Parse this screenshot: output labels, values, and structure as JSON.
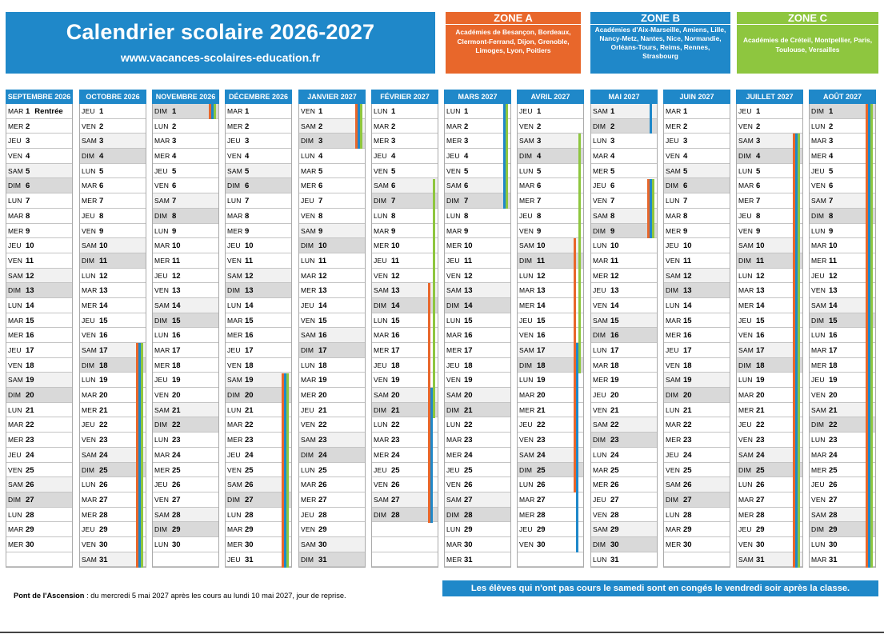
{
  "title": {
    "main": "Calendrier scolaire 2026-2027",
    "website": "www.vacances-scolaires-education.fr"
  },
  "zones": {
    "a": {
      "name": "ZONE A",
      "academies": "Académies de Besançon, Bordeaux, Clermont-Ferrand, Dijon, Grenoble, Limoges, Lyon, Poitiers",
      "color": "#e8672b"
    },
    "b": {
      "name": "ZONE B",
      "academies": "Académies d'Aix-Marseille, Amiens, Lille, Nancy-Metz, Nantes, Nice, Normandie, Orléans-Tours, Reims, Rennes, Strasbourg",
      "color": "#1f88c9"
    },
    "c": {
      "name": "ZONE C",
      "academies": "Académies de Créteil, Montpellier, Paris, Toulouse, Versailles",
      "color": "#8ec63f"
    }
  },
  "months": [
    {
      "name": "SEPTEMBRE 2026",
      "first_day": 2,
      "days": 30,
      "notes": {
        "1": "Rentrée"
      }
    },
    {
      "name": "OCTOBRE 2026",
      "first_day": 4,
      "days": 31
    },
    {
      "name": "NOVEMBRE 2026",
      "first_day": 0,
      "days": 30
    },
    {
      "name": "DÉCEMBRE 2026",
      "first_day": 2,
      "days": 31
    },
    {
      "name": "JANVIER 2027",
      "first_day": 5,
      "days": 31
    },
    {
      "name": "FÉVRIER 2027",
      "first_day": 1,
      "days": 28
    },
    {
      "name": "MARS 2027",
      "first_day": 1,
      "days": 31
    },
    {
      "name": "AVRIL 2027",
      "first_day": 4,
      "days": 30
    },
    {
      "name": "MAI 2027",
      "first_day": 6,
      "days": 31
    },
    {
      "name": "JUIN 2027",
      "first_day": 2,
      "days": 30
    },
    {
      "name": "JUILLET 2027",
      "first_day": 4,
      "days": 31
    },
    {
      "name": "AOÛT 2027",
      "first_day": 0,
      "days": 31
    }
  ],
  "day_abbrev": [
    "DIM",
    "LUN",
    "MAR",
    "MER",
    "JEU",
    "VEN",
    "SAM"
  ],
  "holidays": [
    {
      "zone": "a",
      "month": 1,
      "from": 17,
      "to": 31
    },
    {
      "zone": "b",
      "month": 1,
      "from": 17,
      "to": 31
    },
    {
      "zone": "c",
      "month": 1,
      "from": 17,
      "to": 31
    },
    {
      "zone": "a",
      "month": 2,
      "from": 1,
      "to": 1
    },
    {
      "zone": "b",
      "month": 2,
      "from": 1,
      "to": 1
    },
    {
      "zone": "c",
      "month": 2,
      "from": 1,
      "to": 1
    },
    {
      "zone": "a",
      "month": 3,
      "from": 19,
      "to": 31
    },
    {
      "zone": "b",
      "month": 3,
      "from": 19,
      "to": 31
    },
    {
      "zone": "c",
      "month": 3,
      "from": 19,
      "to": 31
    },
    {
      "zone": "a",
      "month": 4,
      "from": 1,
      "to": 3
    },
    {
      "zone": "b",
      "month": 4,
      "from": 1,
      "to": 3
    },
    {
      "zone": "c",
      "month": 4,
      "from": 1,
      "to": 3
    },
    {
      "zone": "c",
      "month": 5,
      "from": 6,
      "to": 21
    },
    {
      "zone": "c",
      "month": 6,
      "from": 1,
      "to": 7
    },
    {
      "zone": "a",
      "month": 5,
      "from": 13,
      "to": 28
    },
    {
      "zone": "b",
      "month": 5,
      "from": 20,
      "to": 28
    },
    {
      "zone": "b",
      "month": 6,
      "from": 1,
      "to": 7
    },
    {
      "zone": "a",
      "month": 7,
      "from": 10,
      "to": 26
    },
    {
      "zone": "b",
      "month": 7,
      "from": 17,
      "to": 30
    },
    {
      "zone": "c",
      "month": 7,
      "from": 3,
      "to": 18
    },
    {
      "zone": "b",
      "month": 8,
      "from": 1,
      "to": 2
    },
    {
      "zone": "a",
      "month": 8,
      "from": 6,
      "to": 9
    },
    {
      "zone": "b",
      "month": 8,
      "from": 6,
      "to": 9
    },
    {
      "zone": "c",
      "month": 8,
      "from": 6,
      "to": 9
    },
    {
      "zone": "a",
      "month": 10,
      "from": 3,
      "to": 31
    },
    {
      "zone": "b",
      "month": 10,
      "from": 3,
      "to": 31
    },
    {
      "zone": "c",
      "month": 10,
      "from": 3,
      "to": 31
    },
    {
      "zone": "a",
      "month": 11,
      "from": 1,
      "to": 31
    },
    {
      "zone": "b",
      "month": 11,
      "from": 1,
      "to": 31
    },
    {
      "zone": "c",
      "month": 11,
      "from": 1,
      "to": 31
    }
  ],
  "footer": {
    "ascension_label": "Pont de l'Ascension",
    "ascension_text": " : du mercredi 5 mai 2027 après les cours au lundi 10 mai 2027, jour de reprise.",
    "saturday_note": "Les élèves qui n'ont pas cours le samedi sont en congés le vendredi soir après la classe."
  }
}
